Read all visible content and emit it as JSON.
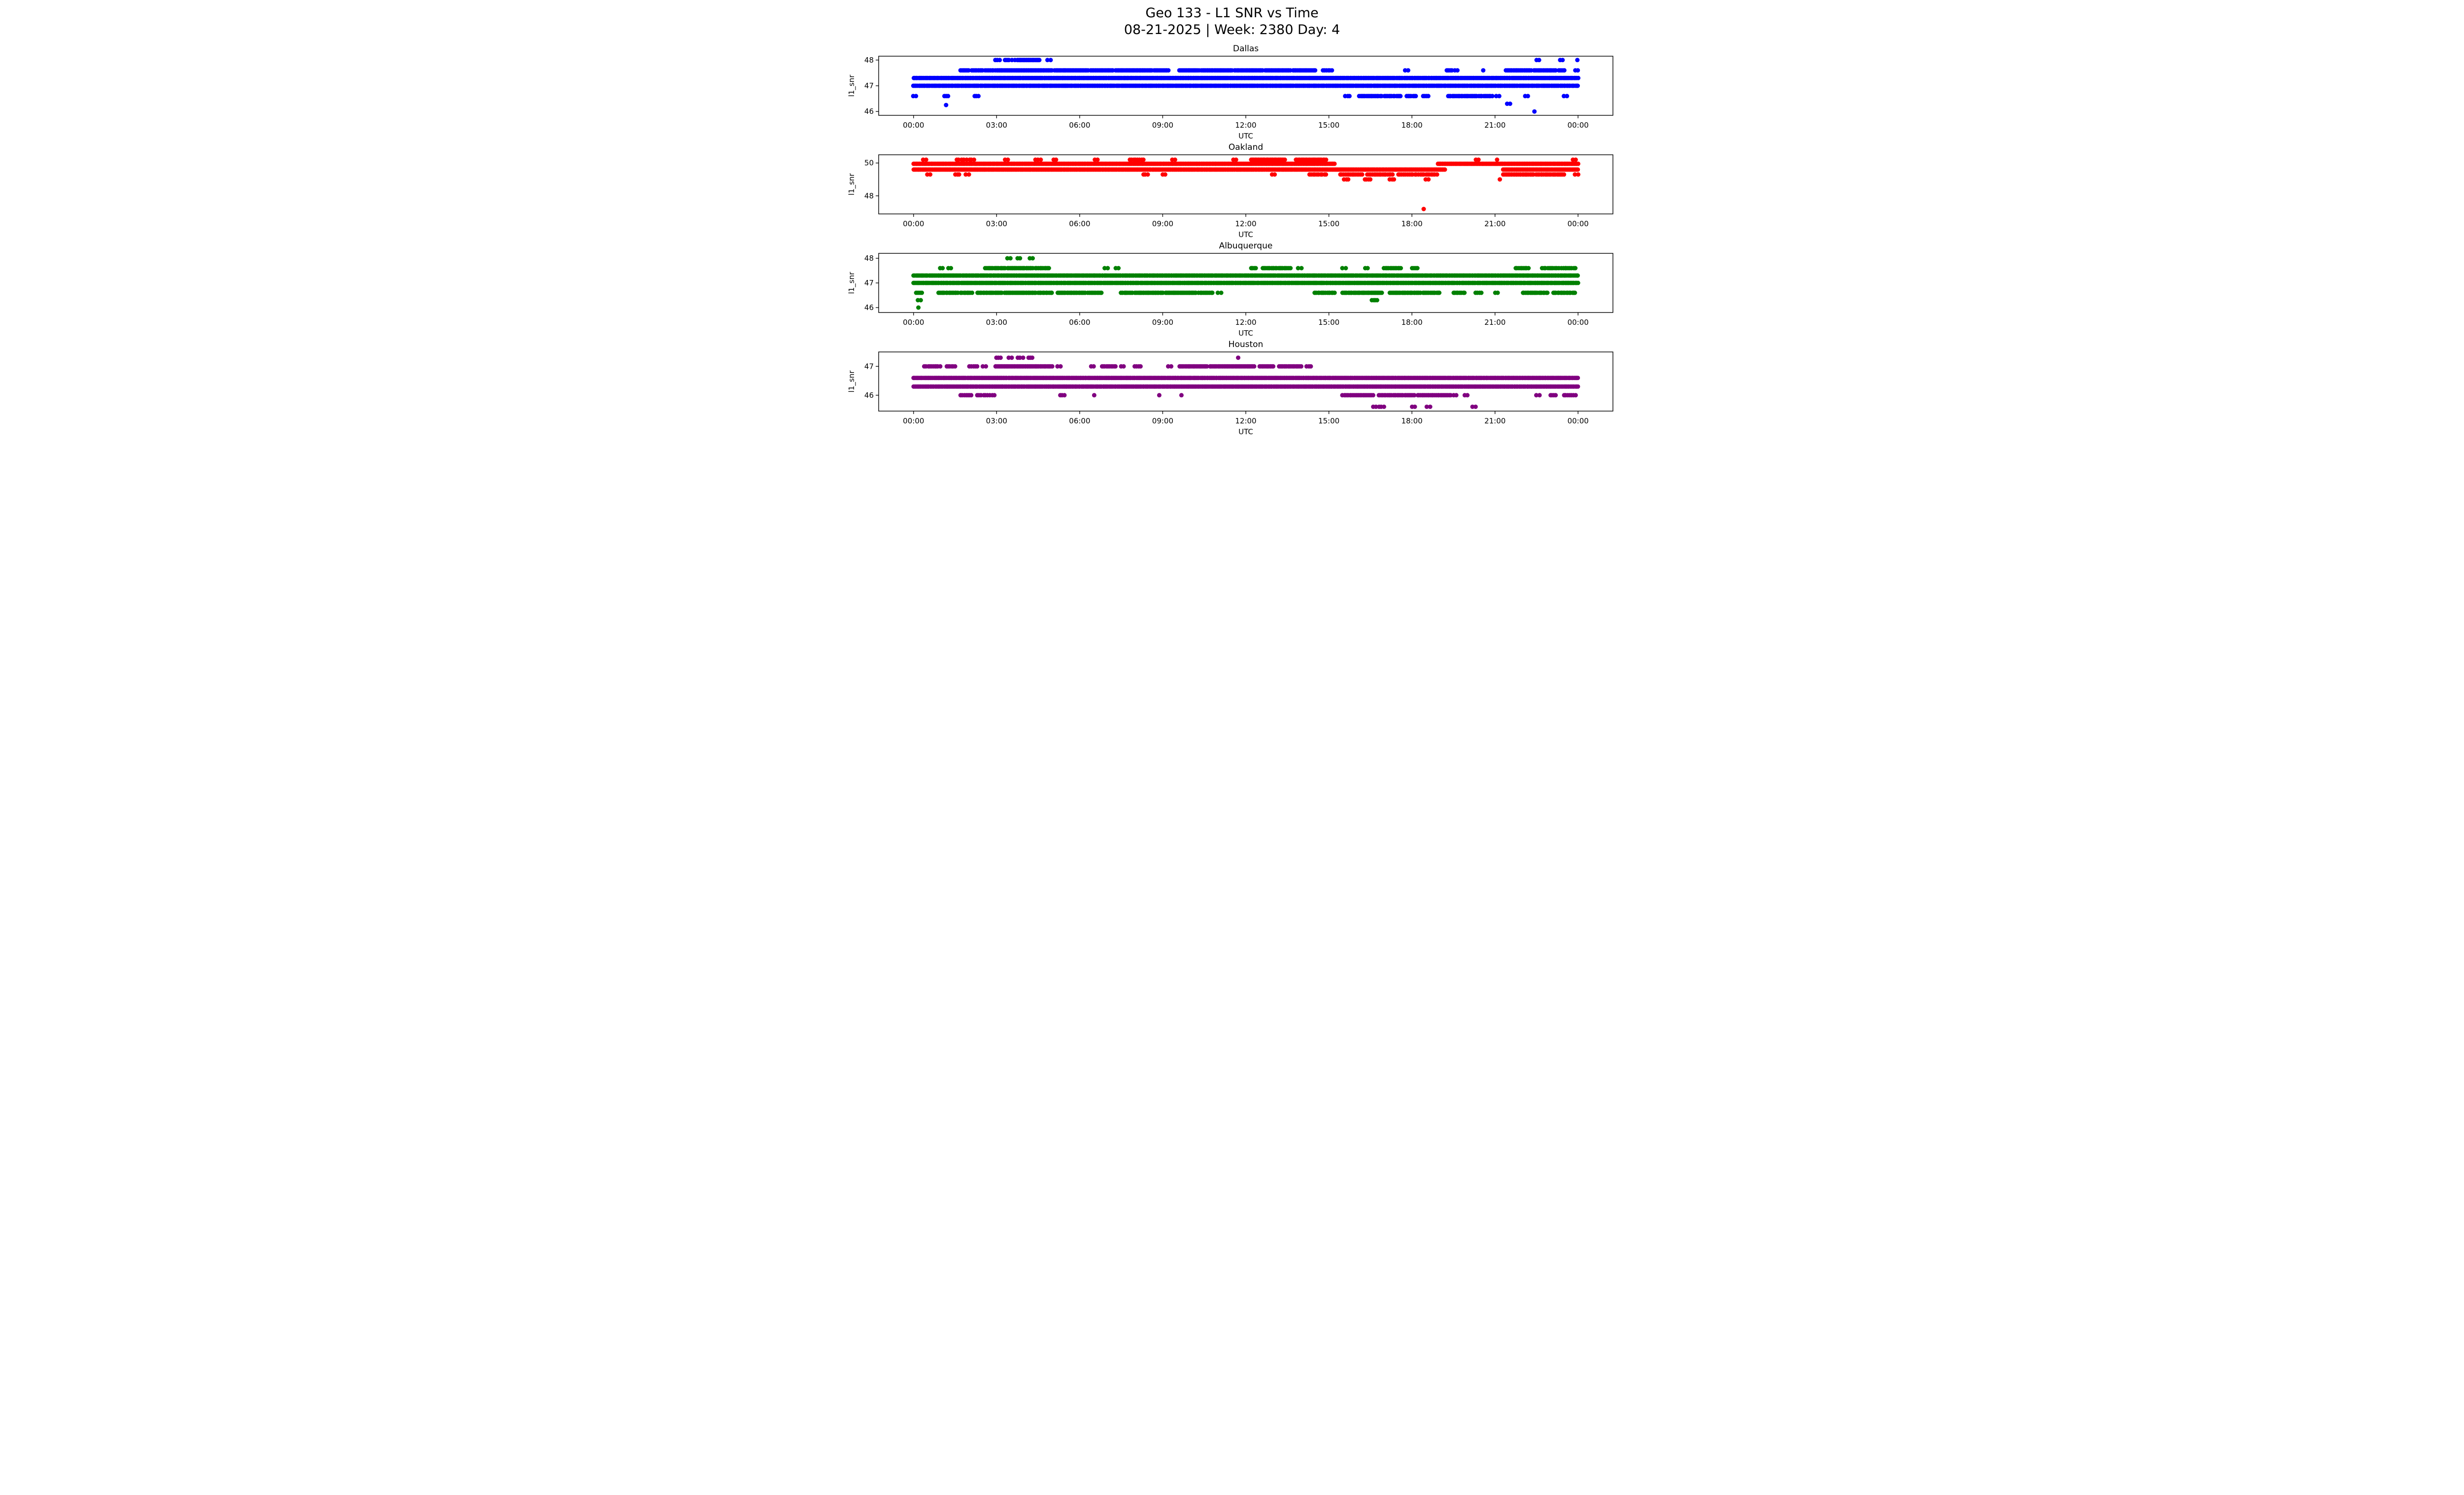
{
  "title": "Geo 133 - L1 SNR vs Time",
  "subtitle": "08-21-2025 | Week: 2380 Day: 4",
  "xlabel": "UTC",
  "ylabel": "l1_snr",
  "xticks": [
    "00:00",
    "03:00",
    "06:00",
    "09:00",
    "12:00",
    "15:00",
    "18:00",
    "21:00",
    "00:00"
  ],
  "xtick_hours": [
    0,
    3,
    6,
    9,
    12,
    15,
    18,
    21,
    24
  ],
  "chart_data": [
    {
      "type": "scatter",
      "title": "Dallas",
      "color": "#0000ff",
      "ylim": [
        45.85,
        48.15
      ],
      "yticks": [
        46,
        47,
        48
      ],
      "xlim_hours": [
        -1.26,
        25.26
      ],
      "x_unit": "hours UTC",
      "levels": [
        {
          "snr": 48.0,
          "segments": [
            [
              2.95,
              3.1,
              3
            ],
            [
              3.3,
              3.45,
              4
            ],
            [
              3.55,
              3.65,
              2
            ],
            [
              3.75,
              4.55,
              28
            ],
            [
              4.85,
              4.95,
              2
            ],
            [
              22.5,
              22.6,
              2
            ],
            [
              23.35,
              23.45,
              2
            ],
            [
              23.95,
              24.0,
              1
            ]
          ]
        },
        {
          "snr": 47.6,
          "segments": [
            [
              1.7,
              2.0,
              8
            ],
            [
              2.1,
              2.5,
              10
            ],
            [
              2.6,
              3.0,
              8
            ],
            [
              3.05,
              5.0,
              60
            ],
            [
              5.1,
              6.3,
              35
            ],
            [
              6.4,
              7.2,
              22
            ],
            [
              7.3,
              8.6,
              38
            ],
            [
              8.7,
              9.2,
              12
            ],
            [
              9.6,
              10.3,
              18
            ],
            [
              10.4,
              11.5,
              30
            ],
            [
              11.6,
              12.6,
              26
            ],
            [
              12.7,
              13.6,
              24
            ],
            [
              13.7,
              14.5,
              20
            ],
            [
              14.8,
              15.1,
              6
            ],
            [
              17.75,
              17.85,
              2
            ],
            [
              19.25,
              19.45,
              5
            ],
            [
              19.55,
              19.65,
              2
            ],
            [
              20.55,
              20.6,
              1
            ],
            [
              21.4,
              22.3,
              22
            ],
            [
              22.4,
              23.2,
              18
            ],
            [
              23.3,
              23.5,
              5
            ],
            [
              23.9,
              24.0,
              2
            ]
          ]
        },
        {
          "snr": 47.3,
          "segments": [
            [
              0,
              24,
              520
            ]
          ]
        },
        {
          "snr": 47.0,
          "segments": [
            [
              0,
              24,
              520
            ]
          ]
        },
        {
          "snr": 46.6,
          "segments": [
            [
              0.0,
              0.1,
              2
            ],
            [
              1.1,
              1.25,
              3
            ],
            [
              2.2,
              2.35,
              3
            ],
            [
              15.6,
              15.75,
              3
            ],
            [
              16.1,
              16.9,
              16
            ],
            [
              17.0,
              17.6,
              12
            ],
            [
              17.8,
              18.15,
              7
            ],
            [
              18.4,
              18.6,
              4
            ],
            [
              19.3,
              20.3,
              20
            ],
            [
              20.35,
              20.9,
              10
            ],
            [
              21.05,
              21.15,
              2
            ],
            [
              22.1,
              22.2,
              2
            ],
            [
              23.5,
              23.6,
              2
            ]
          ]
        },
        {
          "snr": 46.3,
          "segments": [
            [
              21.45,
              21.55,
              2
            ]
          ]
        },
        {
          "snr": 46.25,
          "segments": [
            [
              1.15,
              1.2,
              1
            ]
          ]
        },
        {
          "snr": 46.0,
          "segments": [
            [
              22.4,
              22.45,
              1
            ]
          ]
        }
      ]
    },
    {
      "type": "scatter",
      "title": "Oakland",
      "color": "#ff0000",
      "ylim": [
        46.9,
        50.5
      ],
      "yticks": [
        48,
        50
      ],
      "xlim_hours": [
        -1.26,
        25.26
      ],
      "x_unit": "hours UTC",
      "levels": [
        {
          "snr": 50.2,
          "segments": [
            [
              0.35,
              0.45,
              2
            ],
            [
              1.55,
              2.2,
              8
            ],
            [
              3.3,
              3.4,
              2
            ],
            [
              4.4,
              4.6,
              3
            ],
            [
              5.05,
              5.15,
              2
            ],
            [
              6.55,
              6.65,
              2
            ],
            [
              7.8,
              8.3,
              8
            ],
            [
              9.35,
              9.45,
              2
            ],
            [
              11.55,
              11.65,
              2
            ],
            [
              12.2,
              13.4,
              30
            ],
            [
              13.8,
              14.9,
              22
            ],
            [
              20.3,
              20.4,
              2
            ],
            [
              21.05,
              21.1,
              1
            ],
            [
              23.8,
              23.9,
              2
            ]
          ]
        },
        {
          "snr": 49.95,
          "segments": [
            [
              0,
              15.2,
              440
            ],
            [
              18.95,
              24.0,
              150
            ]
          ]
        },
        {
          "snr": 49.6,
          "segments": [
            [
              0,
              15.3,
              440
            ],
            [
              15.3,
              19.2,
              120
            ],
            [
              21.3,
              24.0,
              85
            ]
          ]
        },
        {
          "snr": 49.3,
          "segments": [
            [
              0.5,
              0.6,
              2
            ],
            [
              1.5,
              1.65,
              3
            ],
            [
              1.9,
              2.0,
              2
            ],
            [
              8.3,
              8.45,
              3
            ],
            [
              9.0,
              9.1,
              2
            ],
            [
              12.95,
              13.05,
              2
            ],
            [
              14.3,
              14.9,
              10
            ],
            [
              15.4,
              16.2,
              14
            ],
            [
              16.4,
              17.3,
              16
            ],
            [
              17.5,
              18.9,
              22
            ],
            [
              21.3,
              22.4,
              25
            ],
            [
              22.5,
              23.5,
              20
            ],
            [
              23.9,
              24.0,
              2
            ]
          ]
        },
        {
          "snr": 49.0,
          "segments": [
            [
              15.55,
              15.7,
              3
            ],
            [
              16.3,
              16.5,
              4
            ],
            [
              17.2,
              17.35,
              3
            ],
            [
              18.5,
              18.6,
              2
            ],
            [
              21.15,
              21.2,
              1
            ]
          ]
        },
        {
          "snr": 47.2,
          "segments": [
            [
              18.4,
              18.45,
              1
            ]
          ]
        }
      ]
    },
    {
      "type": "scatter",
      "title": "Albuquerque",
      "color": "#008000",
      "ylim": [
        45.8,
        48.2
      ],
      "yticks": [
        46,
        47,
        48
      ],
      "xlim_hours": [
        -1.26,
        25.26
      ],
      "x_unit": "hours UTC",
      "levels": [
        {
          "snr": 48.0,
          "segments": [
            [
              3.4,
              3.5,
              2
            ],
            [
              3.75,
              3.85,
              2
            ],
            [
              4.2,
              4.3,
              2
            ]
          ]
        },
        {
          "snr": 47.6,
          "segments": [
            [
              0.95,
              1.05,
              2
            ],
            [
              1.25,
              1.35,
              2
            ],
            [
              2.6,
              3.3,
              14
            ],
            [
              3.4,
              4.3,
              20
            ],
            [
              4.4,
              4.9,
              10
            ],
            [
              6.9,
              7.0,
              2
            ],
            [
              7.3,
              7.4,
              2
            ],
            [
              12.2,
              12.35,
              4
            ],
            [
              12.6,
              13.6,
              20
            ],
            [
              13.9,
              14.0,
              2
            ],
            [
              15.5,
              15.6,
              2
            ],
            [
              16.3,
              16.4,
              2
            ],
            [
              17.0,
              17.6,
              12
            ],
            [
              18.0,
              18.2,
              4
            ],
            [
              21.75,
              22.2,
              9
            ],
            [
              22.7,
              23.3,
              10
            ],
            [
              23.4,
              23.9,
              9
            ]
          ]
        },
        {
          "snr": 47.3,
          "segments": [
            [
              0,
              24,
              520
            ]
          ]
        },
        {
          "snr": 47.0,
          "segments": [
            [
              0,
              24,
              520
            ]
          ]
        },
        {
          "snr": 46.6,
          "segments": [
            [
              0.1,
              0.3,
              4
            ],
            [
              0.9,
              1.6,
              14
            ],
            [
              1.7,
              2.1,
              8
            ],
            [
              2.3,
              3.2,
              18
            ],
            [
              3.3,
              4.4,
              26
            ],
            [
              4.5,
              5.0,
              10
            ],
            [
              5.2,
              6.2,
              22
            ],
            [
              6.3,
              6.8,
              10
            ],
            [
              7.5,
              7.9,
              8
            ],
            [
              8.0,
              9.0,
              22
            ],
            [
              9.1,
              10.2,
              26
            ],
            [
              10.3,
              10.8,
              10
            ],
            [
              11.0,
              11.1,
              2
            ],
            [
              14.5,
              15.2,
              14
            ],
            [
              15.5,
              16.9,
              30
            ],
            [
              17.2,
              18.3,
              24
            ],
            [
              18.4,
              19.0,
              12
            ],
            [
              19.5,
              19.9,
              8
            ],
            [
              20.3,
              20.5,
              4
            ],
            [
              21.0,
              21.1,
              2
            ],
            [
              22.0,
              22.9,
              18
            ],
            [
              23.1,
              23.9,
              16
            ]
          ]
        },
        {
          "snr": 46.3,
          "segments": [
            [
              0.15,
              0.25,
              2
            ],
            [
              16.55,
              16.75,
              4
            ]
          ]
        },
        {
          "snr": 46.0,
          "segments": [
            [
              0.15,
              0.2,
              1
            ]
          ]
        }
      ]
    },
    {
      "type": "scatter",
      "title": "Houston",
      "color": "#800080",
      "ylim": [
        45.45,
        47.5
      ],
      "yticks": [
        46,
        47
      ],
      "xlim_hours": [
        -1.26,
        25.26
      ],
      "x_unit": "hours UTC",
      "levels": [
        {
          "snr": 47.3,
          "segments": [
            [
              3.0,
              3.15,
              3
            ],
            [
              3.45,
              3.55,
              2
            ],
            [
              3.75,
              3.95,
              3
            ],
            [
              4.15,
              4.3,
              3
            ],
            [
              11.7,
              11.75,
              1
            ]
          ]
        },
        {
          "snr": 47.0,
          "segments": [
            [
              0.4,
              0.95,
              10
            ],
            [
              1.2,
              1.5,
              6
            ],
            [
              2.0,
              2.3,
              5
            ],
            [
              2.5,
              2.6,
              2
            ],
            [
              2.95,
              4.3,
              35
            ],
            [
              4.35,
              5.0,
              16
            ],
            [
              5.2,
              5.3,
              2
            ],
            [
              6.4,
              6.5,
              2
            ],
            [
              6.8,
              7.3,
              10
            ],
            [
              7.5,
              7.6,
              2
            ],
            [
              8.0,
              8.2,
              4
            ],
            [
              9.2,
              9.3,
              2
            ],
            [
              9.6,
              10.6,
              24
            ],
            [
              10.7,
              12.3,
              38
            ],
            [
              12.5,
              13.0,
              12
            ],
            [
              13.2,
              14.0,
              18
            ],
            [
              14.2,
              14.35,
              3
            ]
          ]
        },
        {
          "snr": 46.6,
          "segments": [
            [
              0,
              24,
              520
            ]
          ]
        },
        {
          "snr": 46.3,
          "segments": [
            [
              0,
              24,
              520
            ]
          ]
        },
        {
          "snr": 46.0,
          "segments": [
            [
              1.7,
              2.1,
              7
            ],
            [
              2.3,
              2.9,
              9
            ],
            [
              5.3,
              5.45,
              3
            ],
            [
              6.5,
              6.55,
              1
            ],
            [
              8.85,
              8.9,
              1
            ],
            [
              9.65,
              9.7,
              1
            ],
            [
              15.5,
              16.6,
              22
            ],
            [
              16.8,
              18.1,
              26
            ],
            [
              18.2,
              19.4,
              24
            ],
            [
              19.5,
              19.6,
              2
            ],
            [
              19.9,
              20.0,
              2
            ],
            [
              22.5,
              22.6,
              2
            ],
            [
              23.0,
              23.2,
              4
            ],
            [
              23.5,
              23.9,
              7
            ]
          ]
        },
        {
          "snr": 45.6,
          "segments": [
            [
              16.6,
              17.0,
              5
            ],
            [
              18.0,
              18.1,
              2
            ],
            [
              18.55,
              18.65,
              2
            ],
            [
              20.2,
              20.3,
              2
            ]
          ]
        }
      ]
    }
  ]
}
